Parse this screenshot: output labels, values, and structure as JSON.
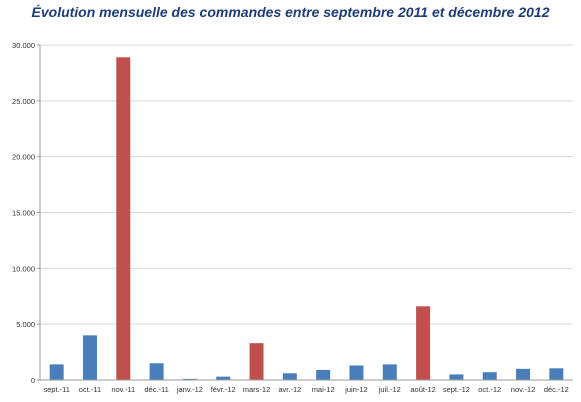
{
  "chart_data": {
    "type": "bar",
    "title": "Évolution mensuelle des commandes entre septembre 2011 et décembre 2012",
    "xlabel": "",
    "ylabel": "",
    "ylim": [
      0,
      30000
    ],
    "yticks": [
      0,
      5000,
      10000,
      15000,
      20000,
      25000,
      30000
    ],
    "ytick_labels": [
      "0",
      "5.000",
      "10.000",
      "15.000",
      "20.000",
      "25.000",
      "30.000"
    ],
    "grid": "horizontal",
    "legend": "none",
    "categories": [
      "sept.-11",
      "oct.-11",
      "nov.-11",
      "déc.-11",
      "janv.-12",
      "févr.-12",
      "mars-12",
      "avr.-12",
      "mai-12",
      "juin-12",
      "juil.-12",
      "août-12",
      "sept.-12",
      "oct.-12",
      "nov.-12",
      "déc.-12"
    ],
    "values": [
      1400,
      4000,
      28900,
      1500,
      100,
      300,
      3300,
      600,
      900,
      1300,
      1400,
      6600,
      500,
      700,
      1000,
      1050
    ],
    "bar_colors": [
      "#4a7ebb",
      "#4a7ebb",
      "#c0504d",
      "#4a7ebb",
      "#4a7ebb",
      "#4a7ebb",
      "#c0504d",
      "#4a7ebb",
      "#4a7ebb",
      "#4a7ebb",
      "#4a7ebb",
      "#c0504d",
      "#4a7ebb",
      "#4a7ebb",
      "#4a7ebb",
      "#4a7ebb"
    ]
  }
}
